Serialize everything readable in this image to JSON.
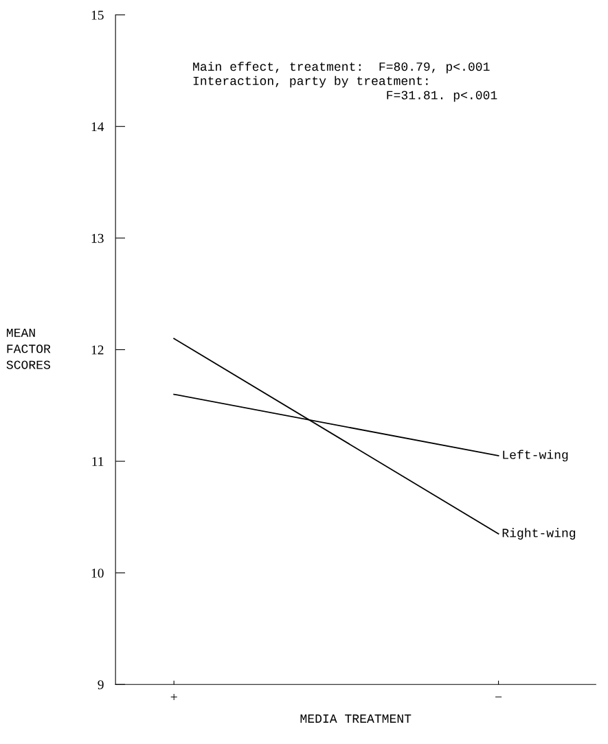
{
  "chart_data": {
    "type": "line",
    "xlabel": "MEDIA TREATMENT",
    "ylabel": "MEAN\nFACTOR\nSCORES",
    "categories": [
      "+",
      "−"
    ],
    "series": [
      {
        "name": "Left-wing",
        "color": "#000000",
        "values": [
          11.6,
          11.05
        ]
      },
      {
        "name": "Right-wing",
        "color": "#000000",
        "values": [
          12.1,
          10.35
        ]
      }
    ],
    "ylim": [
      9,
      15
    ],
    "yticks": [
      9,
      10,
      11,
      12,
      13,
      14,
      15
    ],
    "grid": false,
    "legend": false,
    "marker": "none",
    "line_style": "solid",
    "annotations": [
      "Main effect, treatment:  F=80.79, p<.001\nInteraction, party by treatment:\n                          F=31.81. p<.001"
    ]
  }
}
